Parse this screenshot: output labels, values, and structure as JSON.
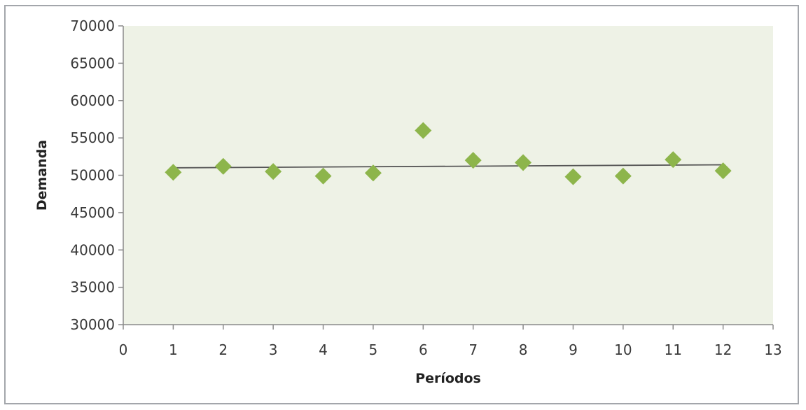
{
  "chart_data": {
    "type": "scatter",
    "title": "",
    "xlabel": "Períodos",
    "ylabel": "Demanda",
    "xlim": [
      0,
      13
    ],
    "ylim": [
      30000,
      70000
    ],
    "x_ticks": [
      0,
      1,
      2,
      3,
      4,
      5,
      6,
      7,
      8,
      9,
      10,
      11,
      12,
      13
    ],
    "y_ticks": [
      30000,
      35000,
      40000,
      45000,
      50000,
      55000,
      60000,
      65000,
      70000
    ],
    "x_tick_labels": [
      "0",
      "1",
      "2",
      "3",
      "4",
      "5",
      "6",
      "7",
      "8",
      "9",
      "10",
      "11",
      "12",
      "13"
    ],
    "y_tick_labels": [
      "30000",
      "35000",
      "40000",
      "45000",
      "50000",
      "55000",
      "60000",
      "65000",
      "70000"
    ],
    "grid": false,
    "legend": "none",
    "series": [
      {
        "marker": "diamond",
        "color": "#8db54b",
        "points": [
          {
            "x": 1,
            "y": 50400
          },
          {
            "x": 2,
            "y": 51200
          },
          {
            "x": 3,
            "y": 50500
          },
          {
            "x": 4,
            "y": 49900
          },
          {
            "x": 5,
            "y": 50300
          },
          {
            "x": 6,
            "y": 56000
          },
          {
            "x": 7,
            "y": 52000
          },
          {
            "x": 8,
            "y": 51700
          },
          {
            "x": 9,
            "y": 49800
          },
          {
            "x": 10,
            "y": 49900
          },
          {
            "x": 11,
            "y": 52100
          },
          {
            "x": 12,
            "y": 50600
          }
        ]
      }
    ],
    "trendline": {
      "type": "linear",
      "color": "#555555",
      "from": {
        "x": 1,
        "y": 51000
      },
      "to": {
        "x": 12,
        "y": 51400
      }
    },
    "plot_background": "#eef2e6"
  }
}
